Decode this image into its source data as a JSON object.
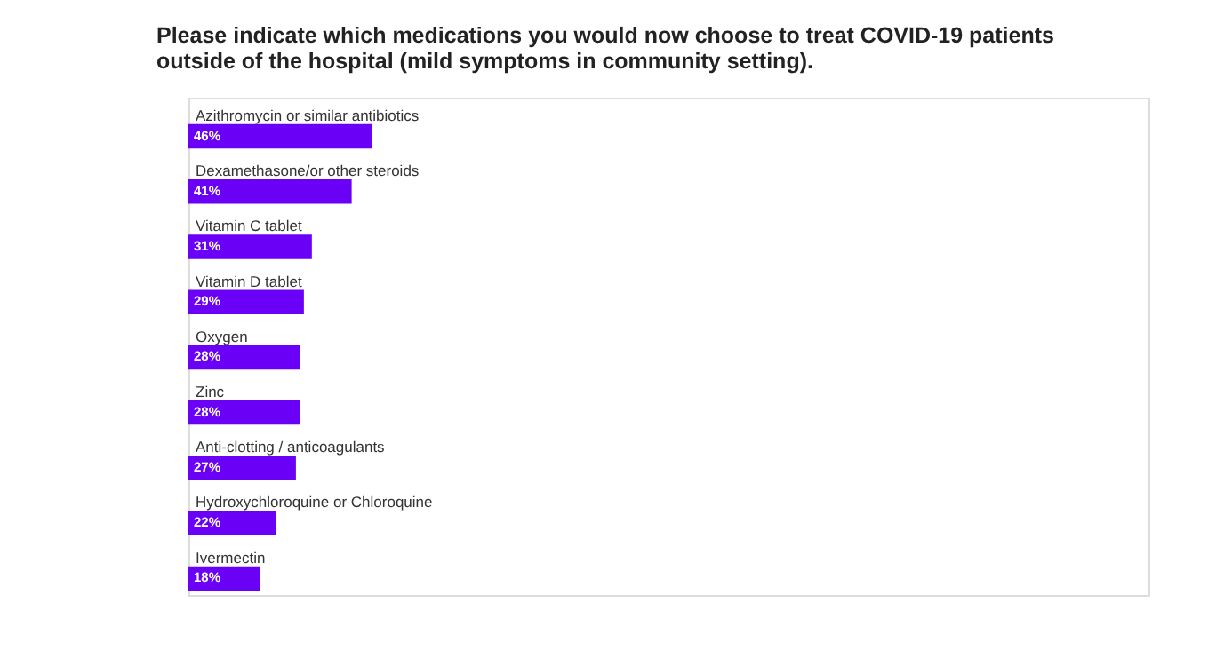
{
  "chart_data": {
    "type": "bar",
    "orientation": "horizontal",
    "title": [
      "Please indicate which medications you would now choose to treat COVID-19 patients",
      "outside of the hospital (mild symptoms in community setting)."
    ],
    "categories": [
      "Azithromycin or similar antibiotics",
      "Dexamethasone/or other steroids",
      "Vitamin C tablet",
      "Vitamin D tablet",
      "Oxygen",
      "Zinc",
      "Anti-clotting / anticoagulants",
      "Hydroxychloroquine or Chloroquine",
      "Ivermectin"
    ],
    "values": [
      46,
      41,
      31,
      29,
      28,
      28,
      27,
      22,
      18
    ],
    "value_labels": [
      "46%",
      "41%",
      "31%",
      "29%",
      "28%",
      "28%",
      "27%",
      "22%",
      "18%"
    ],
    "color": "#6a00f5"
  }
}
